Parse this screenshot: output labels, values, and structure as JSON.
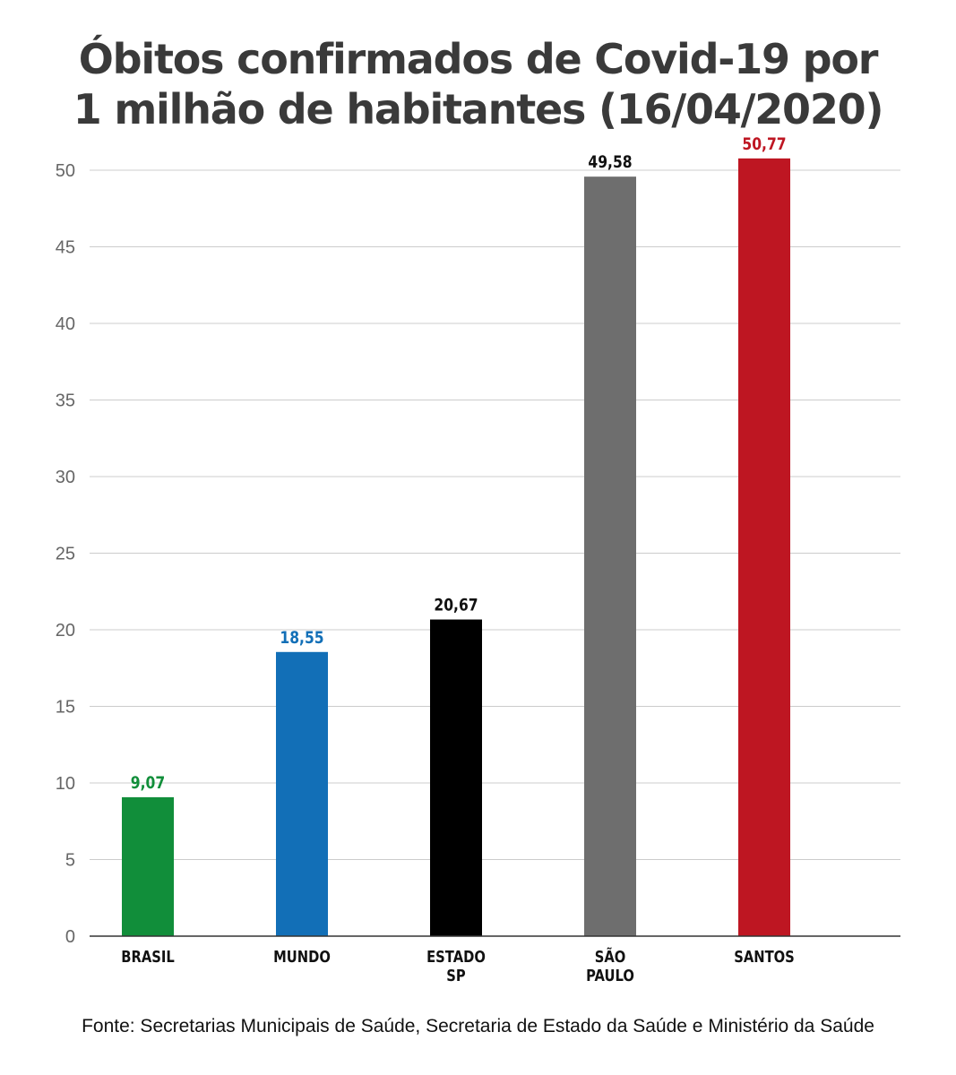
{
  "chart_data": {
    "type": "bar",
    "title_lines": [
      "Óbitos confirmados de Covid-19 por",
      "1 milhão de habitantes (16/04/2020)"
    ],
    "categories": [
      [
        "BRASIL"
      ],
      [
        "MUNDO"
      ],
      [
        "ESTADO",
        "SP"
      ],
      [
        "SÃO",
        "PAULO"
      ],
      [
        "SANTOS"
      ]
    ],
    "values": [
      9.07,
      18.55,
      20.67,
      49.58,
      50.77
    ],
    "value_labels": [
      "9,07",
      "18,55",
      "20,67",
      "49,58",
      "50,77"
    ],
    "colors": [
      "#118e3a",
      "#126fb7",
      "#000000",
      "#6e6e6e",
      "#be1622"
    ],
    "label_colors": [
      "#118e3a",
      "#126fb7",
      "#111111",
      "#111111",
      "#be1622"
    ],
    "yticks": [
      "0",
      "5",
      "10",
      "15",
      "20",
      "25",
      "30",
      "35",
      "40",
      "45",
      "50"
    ],
    "ylim": [
      0,
      50
    ],
    "grid": true,
    "xlabel": "",
    "ylabel": ""
  },
  "source": "Fonte: Secretarias Municipais de Saúde, Secretaria de Estado da Saúde e Ministério da Saúde"
}
